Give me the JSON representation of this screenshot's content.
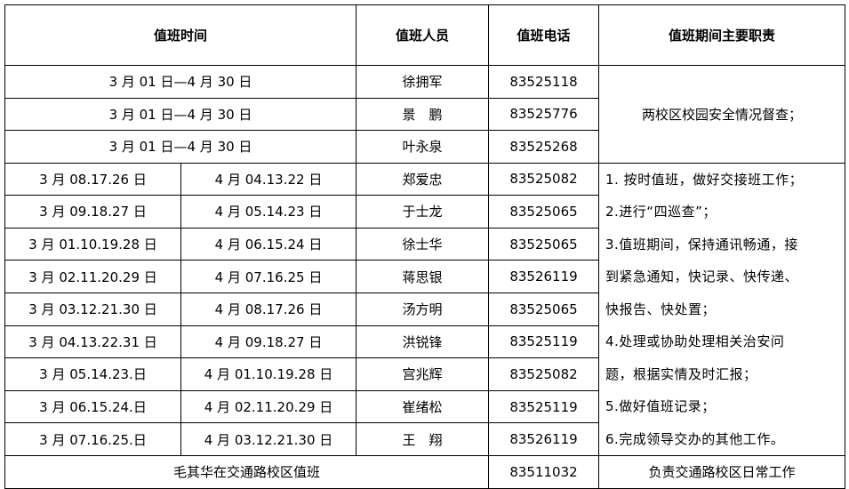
{
  "header": {
    "time": "值班时间",
    "person": "值班人员",
    "phone": "值班电话",
    "duty": "值班期间主要职责"
  },
  "top_rows": [
    {
      "date": "3 月 01 日—4 月 30 日",
      "name": "徐拥军",
      "phone": "83525118"
    },
    {
      "date": "3 月 01 日—4 月 30 日",
      "name": "景　鹏",
      "phone": "83525776"
    },
    {
      "date": "3 月 01 日—4 月 30 日",
      "name": "叶永泉",
      "phone": "83525268"
    }
  ],
  "top_duty": "两校区校园安全情况督查；",
  "rows": [
    {
      "march": "3 月 08.17.26 日",
      "april": "4 月 04.13.22 日",
      "name": "郑爱忠",
      "phone": "83525082"
    },
    {
      "march": "3 月 09.18.27 日",
      "april": "4 月 05.14.23 日",
      "name": "于士龙",
      "phone": "83525065"
    },
    {
      "march": "3 月 01.10.19.28 日",
      "april": "4 月 06.15.24 日",
      "name": "徐士华",
      "phone": "83525065"
    },
    {
      "march": "3 月 02.11.20.29 日",
      "april": "4 月 07.16.25 日",
      "name": "蒋思银",
      "phone": "83526119"
    },
    {
      "march": "3 月 03.12.21.30 日",
      "april": "4 月 08.17.26 日",
      "name": "汤方明",
      "phone": "83525065"
    },
    {
      "march": "3 月 04.13.22.31 日",
      "april": "4 月 09.18.27 日",
      "name": "洪锐锋",
      "phone": "83525119"
    },
    {
      "march": "3 月 05.14.23.日",
      "april": "4 月 01.10.19.28 日",
      "name": "宫兆辉",
      "phone": "83525082"
    },
    {
      "march": "3 月 06.15.24.日",
      "april": "4 月 02.11.20.29 日",
      "name": "崔绪松",
      "phone": "83525119"
    },
    {
      "march": "3 月 07.16.25.日",
      "april": "4 月 03.12.21.30 日",
      "name": "王　翔",
      "phone": "83526119"
    }
  ],
  "duty_lines": [
    "1. 按时值班，做好交接班工作；",
    "2.进行“四巡查”；",
    "3.值班期间，保持通讯畅通，接",
    "到紧急通知，快记录、快传递、",
    "快报告、快处置；",
    "4.处理或协助处理相关治安问",
    "题，根据实情及时汇报；",
    "5.做好值班记录；",
    "6.完成领导交办的其他工作。"
  ],
  "footer": {
    "note": "毛其华在交通路校区值班",
    "phone": "83511032",
    "duty": "负责交通路校区日常工作"
  }
}
